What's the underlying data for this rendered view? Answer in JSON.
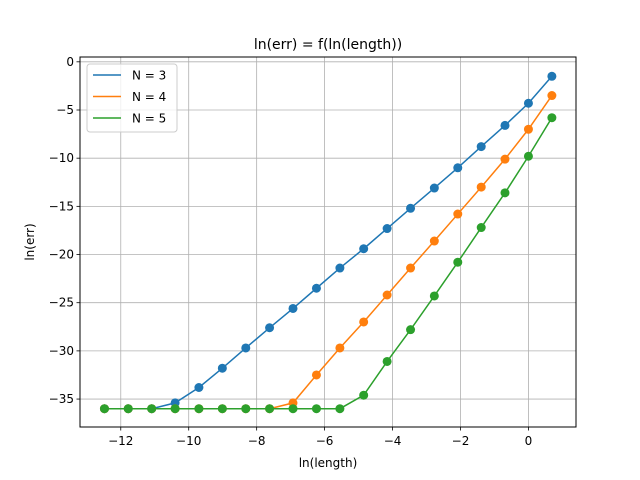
{
  "chart_data": {
    "type": "line",
    "title": "ln(err) = f(ln(length))",
    "xlabel": "ln(length)",
    "ylabel": "ln(err)",
    "xlim": [
      -13.2,
      1.4
    ],
    "ylim": [
      -37.9,
      0.5
    ],
    "xticks": [
      -12,
      -10,
      -8,
      -6,
      -4,
      -2,
      0
    ],
    "xtick_labels": [
      "−12",
      "−10",
      "−8",
      "−6",
      "−4",
      "−2",
      "0"
    ],
    "yticks": [
      0,
      -5,
      -10,
      -15,
      -20,
      -25,
      -30,
      -35
    ],
    "ytick_labels": [
      "0",
      "−5",
      "−10",
      "−15",
      "−20",
      "−25",
      "−30",
      "−35"
    ],
    "grid": true,
    "legend_position": "top-left",
    "x": [
      -12.48,
      -11.78,
      -11.09,
      -10.4,
      -9.7,
      -9.01,
      -8.32,
      -7.62,
      -6.93,
      -6.24,
      -5.55,
      -4.85,
      -4.16,
      -3.47,
      -2.77,
      -2.08,
      -1.39,
      -0.69,
      0.0,
      0.69
    ],
    "series": [
      {
        "name": "N = 3",
        "color": "#1f77b4",
        "values": [
          -36.0,
          -36.0,
          -36.0,
          -35.4,
          -33.8,
          -31.8,
          -29.7,
          -27.6,
          -25.6,
          -23.5,
          -21.4,
          -19.4,
          -17.3,
          -15.2,
          -13.1,
          -11.0,
          -8.8,
          -6.6,
          -4.3,
          -1.5
        ]
      },
      {
        "name": "N = 4",
        "color": "#ff7f0e",
        "values": [
          -36.0,
          -36.0,
          -36.0,
          -36.0,
          -36.0,
          -36.0,
          -36.0,
          -36.0,
          -35.4,
          -32.5,
          -29.7,
          -27.0,
          -24.2,
          -21.4,
          -18.6,
          -15.8,
          -13.0,
          -10.1,
          -7.0,
          -3.5
        ]
      },
      {
        "name": "N = 5",
        "color": "#2ca02c",
        "values": [
          -36.0,
          -36.0,
          -36.0,
          -36.0,
          -36.0,
          -36.0,
          -36.0,
          -36.0,
          -36.0,
          -36.0,
          -36.0,
          -34.6,
          -31.1,
          -27.8,
          -24.3,
          -20.8,
          -17.2,
          -13.6,
          -9.8,
          -5.8
        ]
      }
    ]
  }
}
